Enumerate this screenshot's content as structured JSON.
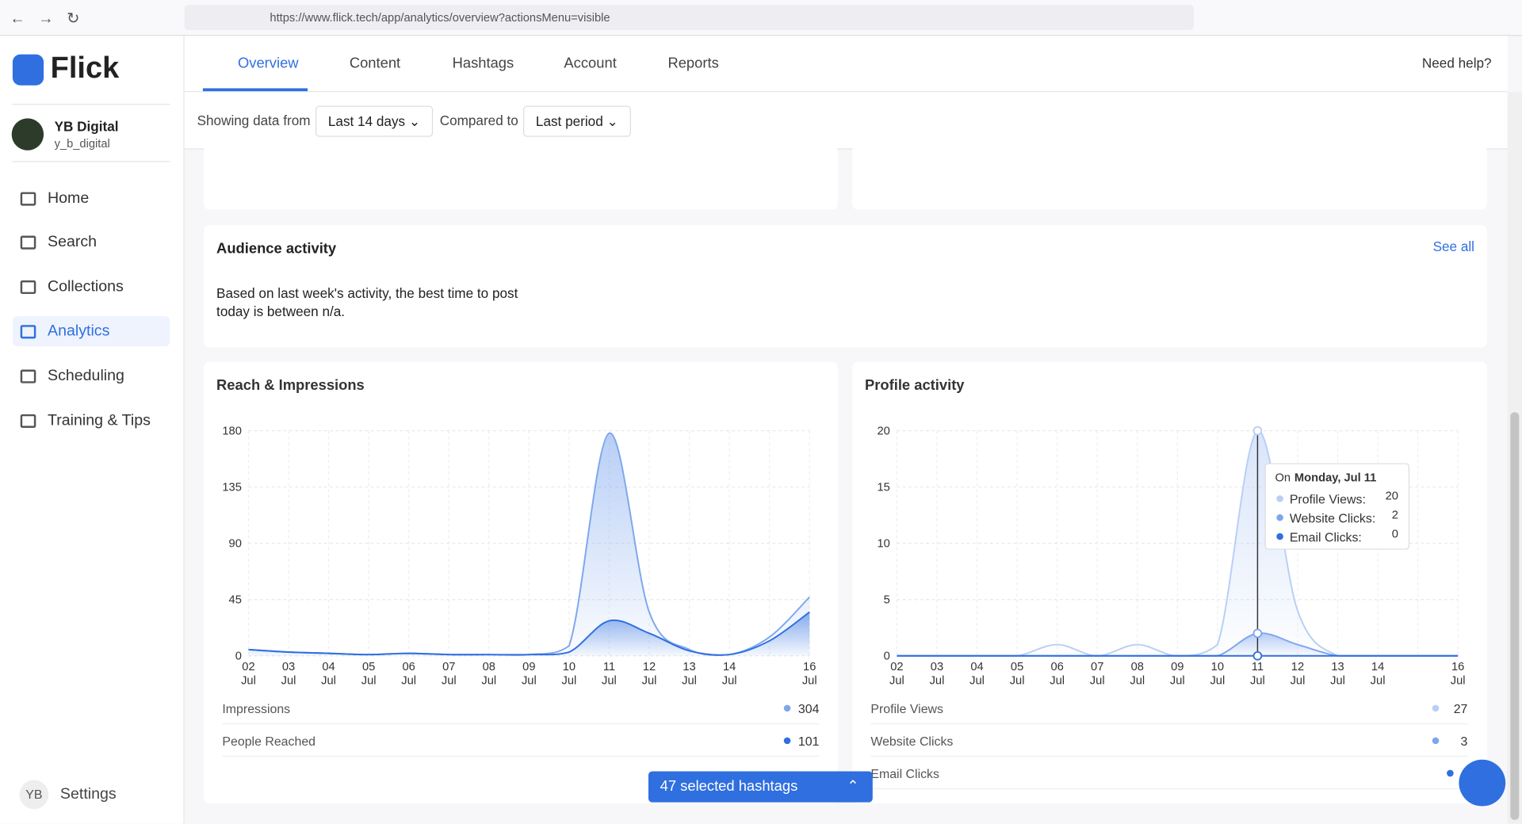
{
  "browser": {
    "url": "https://www.flick.tech/app/analytics/overview?actionsMenu=visible"
  },
  "sidebar": {
    "brand": "Flick",
    "account_name": "YB Digital",
    "account_handle": "y_b_digital",
    "nav": [
      "Home",
      "Search",
      "Collections",
      "Analytics",
      "Scheduling",
      "Training & Tips"
    ],
    "settings_avatar": "YB",
    "settings": "Settings"
  },
  "tabs": [
    "Overview",
    "Content",
    "Hashtags",
    "Account",
    "Reports"
  ],
  "help": "Need help?",
  "filters": {
    "showing_label": "Showing data from",
    "range": "Last 14 days",
    "compared_label": "Compared to",
    "compare": "Last period"
  },
  "audience": {
    "title": "Audience activity",
    "link": "See all",
    "text_lines": [
      "Based on last week's activity, the best time to post",
      "today is between n/a."
    ]
  },
  "hashtag_button": "47 selected hashtags",
  "chart_data": [
    {
      "type": "area",
      "title": "Reach & Impressions",
      "categories": [
        "02",
        "03",
        "04",
        "05",
        "06",
        "07",
        "08",
        "09",
        "10",
        "11",
        "12",
        "13",
        "14",
        null,
        "16"
      ],
      "x_month": "Jul",
      "ylim": [
        0,
        180
      ],
      "yticks": [
        0,
        45,
        90,
        135,
        180
      ],
      "grid": true,
      "series": [
        {
          "name": "Impressions",
          "color": "#7ea7ee",
          "total": 304,
          "values": [
            5,
            3,
            2,
            1,
            2,
            1,
            1,
            1,
            8,
            178,
            35,
            5,
            1,
            15,
            47
          ]
        },
        {
          "name": "People Reached",
          "color": "#2f6fe0",
          "total": 101,
          "values": [
            5,
            3,
            2,
            1,
            2,
            1,
            1,
            1,
            3,
            28,
            18,
            4,
            1,
            12,
            35
          ]
        }
      ]
    },
    {
      "type": "area",
      "title": "Profile activity",
      "categories": [
        "02",
        "03",
        "04",
        "05",
        "06",
        "07",
        "08",
        "09",
        "10",
        "11",
        "12",
        "13",
        "14",
        null,
        "16"
      ],
      "x_month": "Jul",
      "ylim": [
        0,
        20
      ],
      "yticks": [
        0,
        5,
        10,
        15,
        20
      ],
      "grid": true,
      "series": [
        {
          "name": "Profile Views",
          "color": "#b8cff6",
          "total": 27,
          "values": [
            0,
            0,
            0,
            0,
            1,
            0,
            1,
            0,
            1,
            20,
            4,
            0,
            0,
            0,
            0
          ]
        },
        {
          "name": "Website Clicks",
          "color": "#7ea6ee",
          "total": 3,
          "values": [
            0,
            0,
            0,
            0,
            0,
            0,
            0,
            0,
            0,
            2,
            1,
            0,
            0,
            0,
            0
          ]
        },
        {
          "name": "Email Clicks",
          "color": "#2f6fe0",
          "values": [
            0,
            0,
            0,
            0,
            0,
            0,
            0,
            0,
            0,
            0,
            0,
            0,
            0,
            0,
            0
          ]
        }
      ],
      "tooltip": {
        "index": 9,
        "prefix": "On",
        "date": "Monday, Jul 11",
        "labels": [
          "Profile Views:",
          "Website Clicks:",
          "Email Clicks:"
        ]
      }
    }
  ]
}
